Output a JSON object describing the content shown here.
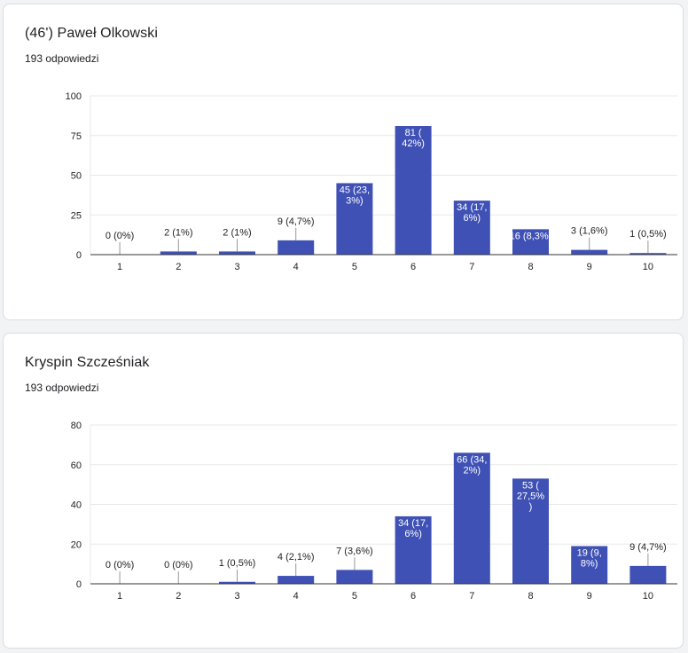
{
  "cards": [
    {
      "title": "(46') Paweł Olkowski",
      "responses": "193 odpowiedzi"
    },
    {
      "title": "Kryspin Szcześniak",
      "responses": "193 odpowiedzi"
    }
  ],
  "colors": {
    "bar": "#3f51b5",
    "grid": "#e8e8e8",
    "axis": "#333333",
    "label_dark": "#222222",
    "label_light": "#ffffff"
  },
  "chart_data": [
    {
      "type": "bar",
      "title": "(46') Paweł Olkowski",
      "subtitle": "193 odpowiedzi",
      "categories": [
        "1",
        "2",
        "3",
        "4",
        "5",
        "6",
        "7",
        "8",
        "9",
        "10"
      ],
      "values": [
        0,
        2,
        2,
        9,
        45,
        81,
        34,
        16,
        3,
        1
      ],
      "data_labels": [
        [
          "0 (0%)"
        ],
        [
          "2 (1%)"
        ],
        [
          "2 (1%)"
        ],
        [
          "9 (4,7%)"
        ],
        [
          "45 (23,",
          "3%)"
        ],
        [
          "81 (",
          "42%)"
        ],
        [
          "34 (17,",
          "6%)"
        ],
        [
          "16 (8,3%)"
        ],
        [
          "3 (1,6%)"
        ],
        [
          "1 (0,5%)"
        ]
      ],
      "ylim": [
        0,
        100
      ],
      "yticks": [
        0,
        25,
        50,
        75,
        100
      ],
      "grid": true,
      "legend": "none"
    },
    {
      "type": "bar",
      "title": "Kryspin Szcześniak",
      "subtitle": "193 odpowiedzi",
      "categories": [
        "1",
        "2",
        "3",
        "4",
        "5",
        "6",
        "7",
        "8",
        "9",
        "10"
      ],
      "values": [
        0,
        0,
        1,
        4,
        7,
        34,
        66,
        53,
        19,
        9
      ],
      "data_labels": [
        [
          "0 (0%)"
        ],
        [
          "0 (0%)"
        ],
        [
          "1 (0,5%)"
        ],
        [
          "4 (2,1%)"
        ],
        [
          "7 (3,6%)"
        ],
        [
          "34 (17,",
          "6%)"
        ],
        [
          "66 (34,",
          "2%)"
        ],
        [
          "53 (",
          "27,5%",
          ")"
        ],
        [
          "19 (9,",
          "8%)"
        ],
        [
          "9 (4,7%)"
        ]
      ],
      "ylim": [
        0,
        80
      ],
      "yticks": [
        0,
        20,
        40,
        60,
        80
      ],
      "grid": true,
      "legend": "none"
    }
  ]
}
